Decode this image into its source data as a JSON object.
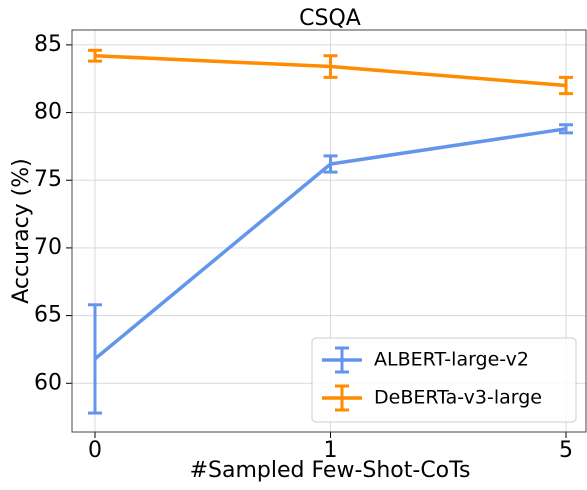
{
  "chart_data": {
    "type": "line",
    "title": "CSQA",
    "xlabel": "#Sampled Few-Shot-CoTs",
    "ylabel": "Accuracy (%)",
    "categories": [
      "0",
      "1",
      "5"
    ],
    "series": [
      {
        "name": "ALBERT-large-v2",
        "color": "#6495ed",
        "values": [
          61.8,
          76.2,
          78.8
        ],
        "errors": [
          4.0,
          0.6,
          0.3
        ]
      },
      {
        "name": "DeBERTa-v3-large",
        "color": "#ff8c00",
        "values": [
          84.2,
          83.4,
          82.0
        ],
        "errors": [
          0.4,
          0.8,
          0.6
        ]
      }
    ],
    "ylim": [
      56.4,
      86.1
    ],
    "yticks": [
      60,
      65,
      70,
      75,
      80,
      85
    ],
    "grid": true,
    "legend": "lower right"
  }
}
